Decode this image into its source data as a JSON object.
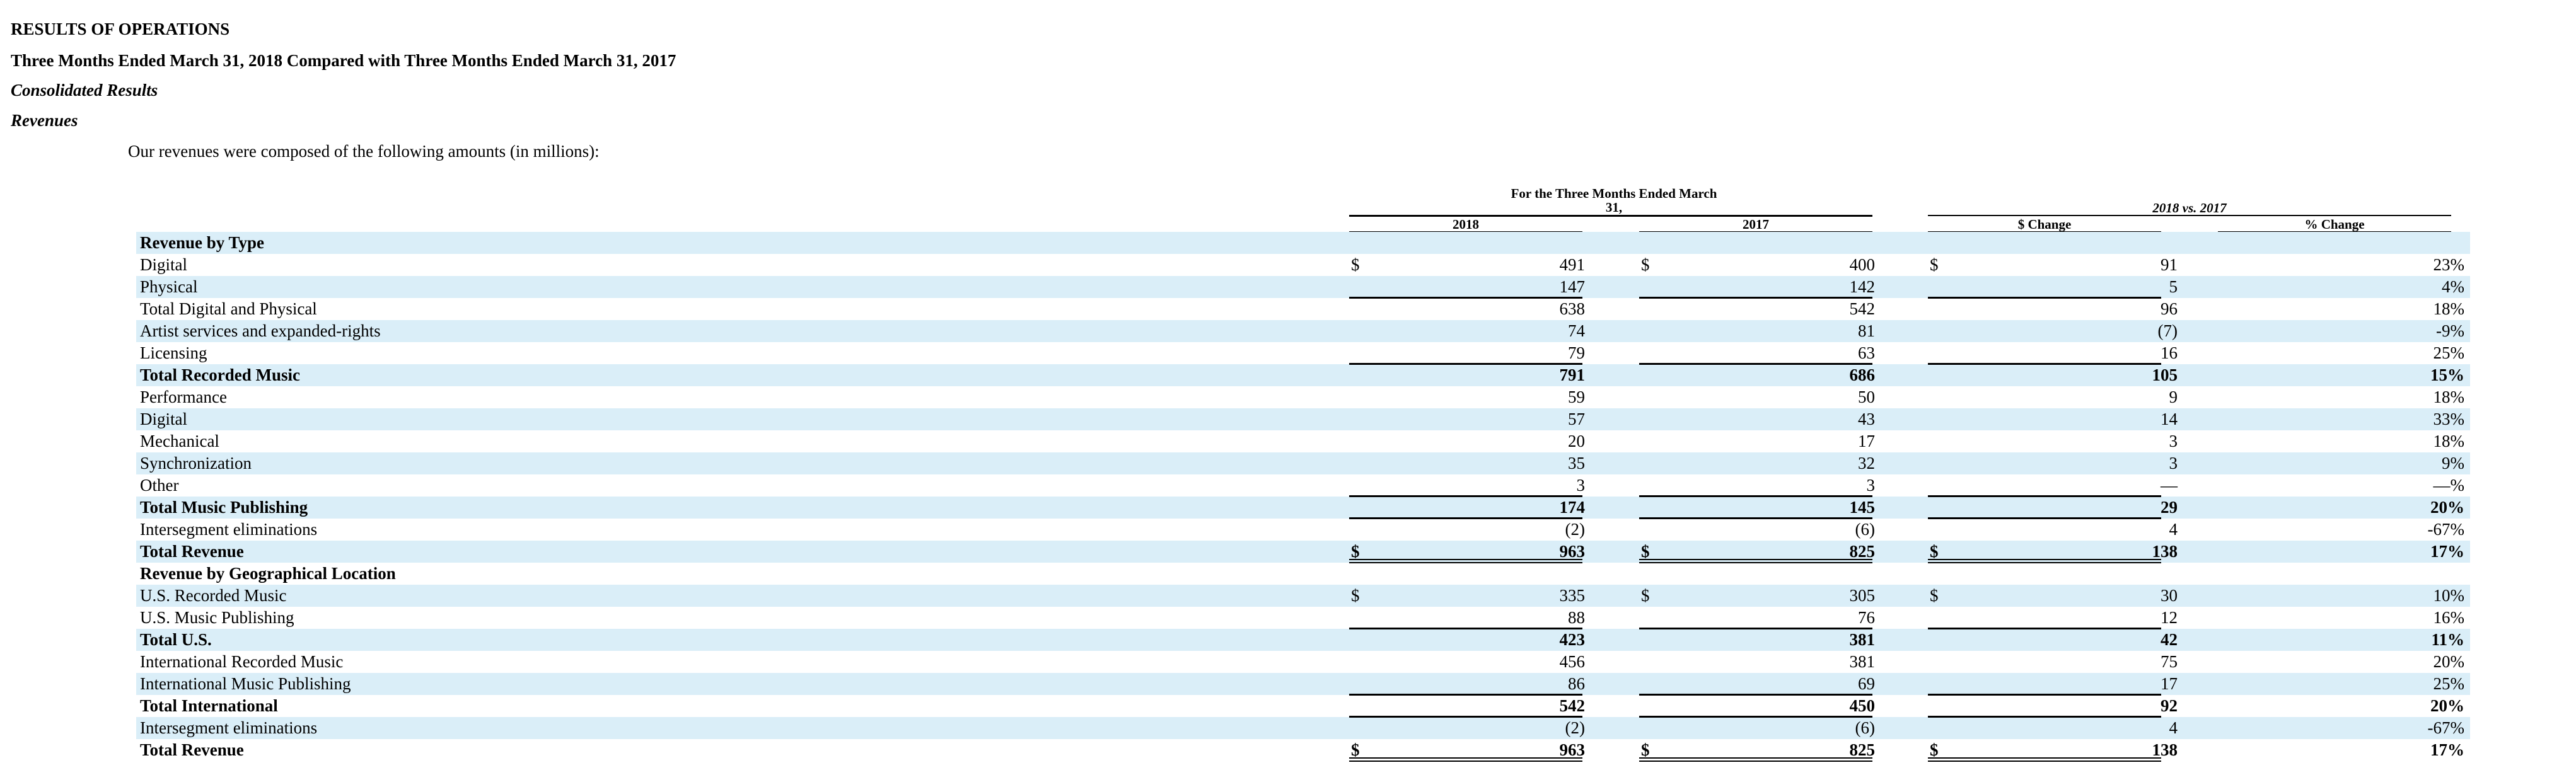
{
  "headings": {
    "results": "RESULTS OF OPERATIONS",
    "period": "Three Months Ended March 31, 2018 Compared with Three Months Ended March 31, 2017",
    "consolidated": "Consolidated Results",
    "revenues": "Revenues"
  },
  "intro": "Our revenues were composed of the following amounts (in millions):",
  "table": {
    "group_header": "For the Three Months Ended March 31,",
    "comparison_header": "2018 vs. 2017",
    "columns": [
      "2018",
      "2017",
      "$ Change",
      "% Change"
    ],
    "rows": [
      {
        "label": "Revenue by Type",
        "bold": true,
        "section": true
      },
      {
        "label": "Digital",
        "dollar": true,
        "v2018": "491",
        "v2017": "400",
        "change": "91",
        "pct": "23%"
      },
      {
        "label": "Physical",
        "v2018": "147",
        "v2017": "142",
        "change": "5",
        "pct": "4%"
      },
      {
        "label": "Total Digital and Physical",
        "v2018": "638",
        "v2017": "542",
        "change": "96",
        "pct": "18%"
      },
      {
        "label": "Artist services and expanded-rights",
        "v2018": "74",
        "v2017": "81",
        "change": "(7)",
        "pct": "-9%"
      },
      {
        "label": "Licensing",
        "v2018": "79",
        "v2017": "63",
        "change": "16",
        "pct": "25%"
      },
      {
        "label": "Total Recorded Music",
        "bold": true,
        "v2018": "791",
        "v2017": "686",
        "change": "105",
        "pct": "15%"
      },
      {
        "label": "Performance",
        "v2018": "59",
        "v2017": "50",
        "change": "9",
        "pct": "18%"
      },
      {
        "label": "Digital",
        "v2018": "57",
        "v2017": "43",
        "change": "14",
        "pct": "33%"
      },
      {
        "label": "Mechanical",
        "v2018": "20",
        "v2017": "17",
        "change": "3",
        "pct": "18%"
      },
      {
        "label": "Synchronization",
        "v2018": "35",
        "v2017": "32",
        "change": "3",
        "pct": "9%"
      },
      {
        "label": "Other",
        "v2018": "3",
        "v2017": "3",
        "change": "—",
        "pct": "—%"
      },
      {
        "label": "Total Music Publishing",
        "bold": true,
        "v2018": "174",
        "v2017": "145",
        "change": "29",
        "pct": "20%"
      },
      {
        "label": "Intersegment eliminations",
        "v2018": "(2)",
        "v2017": "(6)",
        "change": "4",
        "pct": "-67%"
      },
      {
        "label": "Total Revenue",
        "bold": true,
        "dollar": true,
        "v2018": "963",
        "v2017": "825",
        "change": "138",
        "pct": "17%"
      },
      {
        "label": "Revenue by Geographical Location",
        "bold": true,
        "section": true
      },
      {
        "label": "U.S. Recorded Music",
        "dollar": true,
        "v2018": "335",
        "v2017": "305",
        "change": "30",
        "pct": "10%"
      },
      {
        "label": "U.S. Music Publishing",
        "v2018": "88",
        "v2017": "76",
        "change": "12",
        "pct": "16%"
      },
      {
        "label": "Total U.S.",
        "bold": true,
        "v2018": "423",
        "v2017": "381",
        "change": "42",
        "pct": "11%"
      },
      {
        "label": "International Recorded Music",
        "v2018": "456",
        "v2017": "381",
        "change": "75",
        "pct": "20%"
      },
      {
        "label": "International Music Publishing",
        "v2018": "86",
        "v2017": "69",
        "change": "17",
        "pct": "25%"
      },
      {
        "label": "Total International",
        "bold": true,
        "v2018": "542",
        "v2017": "450",
        "change": "92",
        "pct": "20%"
      },
      {
        "label": "Intersegment eliminations",
        "v2018": "(2)",
        "v2017": "(6)",
        "change": "4",
        "pct": "-67%"
      },
      {
        "label": "Total Revenue",
        "bold": true,
        "dollar": true,
        "v2018": "963",
        "v2017": "825",
        "change": "138",
        "pct": "17%"
      }
    ]
  }
}
